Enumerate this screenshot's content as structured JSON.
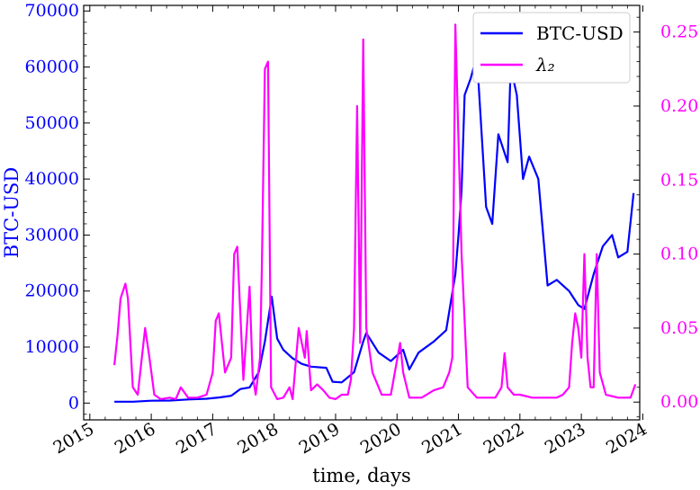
{
  "chart_data": {
    "type": "line",
    "xlabel": "time, days",
    "ylabel": "BTC-USD",
    "y2label": "",
    "xlim": [
      2014.9,
      2023.95
    ],
    "ylim": [
      -3000,
      71000
    ],
    "y2lim": [
      -0.012,
      0.268
    ],
    "x_ticks": [
      2015,
      2016,
      2017,
      2018,
      2019,
      2020,
      2021,
      2022,
      2023,
      2024
    ],
    "x_tick_labels": [
      "2015",
      "2016",
      "2017",
      "2018",
      "2019",
      "2020",
      "2021",
      "2022",
      "2023",
      "2024"
    ],
    "y_ticks": [
      0,
      10000,
      20000,
      30000,
      40000,
      50000,
      60000,
      70000
    ],
    "y_tick_labels": [
      "0",
      "10000",
      "20000",
      "30000",
      "40000",
      "50000",
      "60000",
      "70000"
    ],
    "y2_ticks": [
      0.0,
      0.05,
      0.1,
      0.15,
      0.2,
      0.25
    ],
    "y2_tick_labels": [
      "0.00",
      "0.05",
      "0.10",
      "0.15",
      "0.20",
      "0.25"
    ],
    "legend": {
      "position": "top-right",
      "entries": [
        {
          "label": "BTC-USD",
          "color": "#0000ff"
        },
        {
          "label": "λ₂",
          "color": "#ff00ff"
        }
      ]
    },
    "series": [
      {
        "name": "BTC-USD",
        "axis": "left",
        "color": "#0000ff",
        "x": [
          2015.4,
          2015.7,
          2016.0,
          2016.3,
          2016.6,
          2016.9,
          2017.1,
          2017.3,
          2017.45,
          2017.6,
          2017.75,
          2017.85,
          2017.96,
          2018.05,
          2018.15,
          2018.3,
          2018.45,
          2018.6,
          2018.85,
          2018.95,
          2019.1,
          2019.3,
          2019.45,
          2019.5,
          2019.7,
          2019.9,
          2020.1,
          2020.2,
          2020.35,
          2020.6,
          2020.8,
          2020.95,
          2021.0,
          2021.05,
          2021.1,
          2021.2,
          2021.3,
          2021.45,
          2021.55,
          2021.65,
          2021.8,
          2021.85,
          2021.95,
          2022.05,
          2022.15,
          2022.3,
          2022.45,
          2022.6,
          2022.8,
          2022.95,
          2023.05,
          2023.2,
          2023.35,
          2023.5,
          2023.6,
          2023.75,
          2023.85
        ],
        "y": [
          250,
          250,
          420,
          450,
          650,
          780,
          1000,
          1300,
          2500,
          2800,
          5500,
          11000,
          19000,
          11500,
          9500,
          8000,
          7000,
          6500,
          6300,
          3800,
          3700,
          5500,
          11000,
          12500,
          9000,
          7500,
          9500,
          6000,
          9000,
          11000,
          13000,
          23000,
          30000,
          38000,
          55000,
          58000,
          62000,
          35000,
          32000,
          48000,
          43000,
          60000,
          55000,
          40000,
          44000,
          40000,
          21000,
          22000,
          20000,
          17500,
          16800,
          23000,
          28000,
          30000,
          26000,
          27000,
          37500
        ]
      },
      {
        "name": "λ₂",
        "axis": "right",
        "color": "#ff00ff",
        "x": [
          2015.4,
          2015.45,
          2015.5,
          2015.58,
          2015.62,
          2015.7,
          2015.78,
          2015.9,
          2015.97,
          2016.05,
          2016.15,
          2016.3,
          2016.4,
          2016.48,
          2016.6,
          2016.75,
          2016.9,
          2017.0,
          2017.05,
          2017.1,
          2017.2,
          2017.3,
          2017.35,
          2017.4,
          2017.5,
          2017.6,
          2017.65,
          2017.7,
          2017.77,
          2017.8,
          2017.85,
          2017.9,
          2017.95,
          2018.05,
          2018.15,
          2018.25,
          2018.3,
          2018.4,
          2018.5,
          2018.53,
          2018.6,
          2018.7,
          2018.8,
          2018.9,
          2019.0,
          2019.1,
          2019.2,
          2019.25,
          2019.3,
          2019.35,
          2019.4,
          2019.45,
          2019.5,
          2019.6,
          2019.75,
          2019.9,
          2020.05,
          2020.1,
          2020.2,
          2020.4,
          2020.6,
          2020.75,
          2020.85,
          2020.9,
          2020.95,
          2021.05,
          2021.15,
          2021.3,
          2021.5,
          2021.6,
          2021.7,
          2021.75,
          2021.8,
          2021.9,
          2022.0,
          2022.2,
          2022.4,
          2022.6,
          2022.7,
          2022.8,
          2022.85,
          2022.9,
          2022.95,
          2023.0,
          2023.05,
          2023.1,
          2023.15,
          2023.2,
          2023.25,
          2023.3,
          2023.4,
          2023.6,
          2023.8,
          2023.88
        ],
        "y": [
          0.025,
          0.045,
          0.07,
          0.08,
          0.07,
          0.01,
          0.005,
          0.05,
          0.03,
          0.005,
          0.002,
          0.003,
          0.002,
          0.01,
          0.003,
          0.003,
          0.005,
          0.02,
          0.055,
          0.06,
          0.02,
          0.03,
          0.1,
          0.105,
          0.015,
          0.078,
          0.018,
          0.005,
          0.03,
          0.09,
          0.225,
          0.23,
          0.01,
          0.002,
          0.003,
          0.01,
          0.002,
          0.05,
          0.03,
          0.048,
          0.008,
          0.012,
          0.008,
          0.003,
          0.002,
          0.005,
          0.005,
          0.015,
          0.05,
          0.2,
          0.04,
          0.245,
          0.05,
          0.02,
          0.005,
          0.005,
          0.04,
          0.02,
          0.003,
          0.003,
          0.008,
          0.01,
          0.02,
          0.03,
          0.255,
          0.1,
          0.01,
          0.003,
          0.003,
          0.003,
          0.01,
          0.033,
          0.01,
          0.005,
          0.005,
          0.003,
          0.003,
          0.003,
          0.005,
          0.01,
          0.04,
          0.06,
          0.05,
          0.03,
          0.1,
          0.03,
          0.01,
          0.01,
          0.1,
          0.02,
          0.005,
          0.003,
          0.003,
          0.012
        ]
      }
    ]
  }
}
